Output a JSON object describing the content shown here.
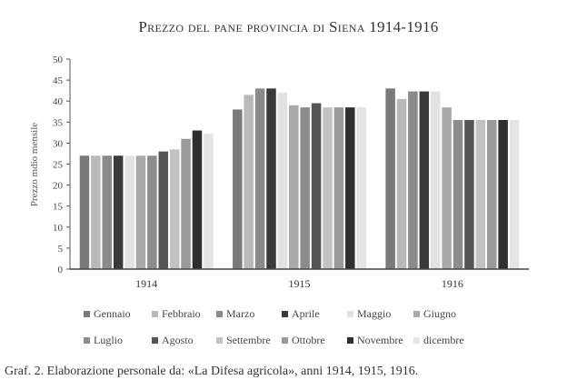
{
  "chart_data": {
    "type": "bar",
    "title": "Prezzo del pane provincia di Siena 1914-1916",
    "ylabel": "Prezzo mdio mensile",
    "xlabel": "",
    "ylim": [
      0,
      50
    ],
    "yticks": [
      0,
      5,
      10,
      15,
      20,
      25,
      30,
      35,
      40,
      45,
      50
    ],
    "categories": [
      "1914",
      "1915",
      "1916"
    ],
    "legend_position": "bottom",
    "grid": false,
    "series": [
      {
        "name": "Gennaio",
        "color": "#7a7a7a",
        "values": [
          27,
          38,
          43
        ]
      },
      {
        "name": "Febbraio",
        "color": "#b9b9b9",
        "values": [
          27,
          41.5,
          40.5
        ]
      },
      {
        "name": "Marzo",
        "color": "#8a8a8a",
        "values": [
          27,
          43,
          42.3
        ]
      },
      {
        "name": "Aprile",
        "color": "#3a3a3a",
        "values": [
          27,
          43,
          42.3
        ]
      },
      {
        "name": "Maggio",
        "color": "#e2e2e2",
        "values": [
          27,
          42,
          42.3
        ]
      },
      {
        "name": "Giugno",
        "color": "#a9a9a9",
        "values": [
          27,
          39,
          38.5
        ]
      },
      {
        "name": "Luglio",
        "color": "#8c8c8c",
        "values": [
          27,
          38.5,
          35.5
        ]
      },
      {
        "name": "Agosto",
        "color": "#555555",
        "values": [
          28,
          39.5,
          35.5
        ]
      },
      {
        "name": "Settembre",
        "color": "#c2c2c2",
        "values": [
          28.5,
          38.5,
          35.5
        ]
      },
      {
        "name": "Ottobre",
        "color": "#9a9a9a",
        "values": [
          31,
          38.5,
          35.5
        ]
      },
      {
        "name": "Novembre",
        "color": "#2f2f2f",
        "values": [
          33,
          38.5,
          35.5
        ]
      },
      {
        "name": "dicembre",
        "color": "#e4e4e4",
        "values": [
          32.2,
          38.5,
          35.5
        ]
      }
    ]
  },
  "caption": "Graf. 2. Elaborazione personale da: «La Difesa agricola», anni 1914, 1915, 1916."
}
